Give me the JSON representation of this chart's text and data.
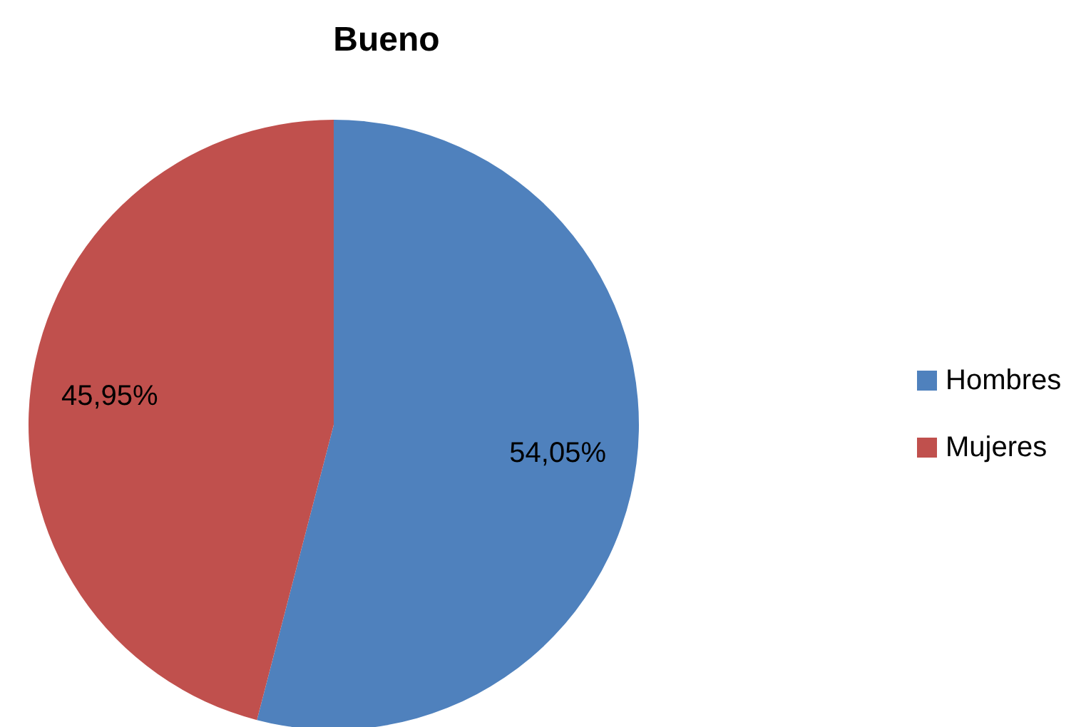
{
  "chart_data": {
    "type": "pie",
    "title": "Bueno",
    "categories": [
      "Hombres",
      "Mujeres"
    ],
    "values": [
      54.05,
      45.95
    ],
    "colors": [
      "#4f81bd",
      "#c0504d"
    ],
    "value_labels": [
      "54,05%",
      "45,95%"
    ],
    "legend": "right"
  }
}
